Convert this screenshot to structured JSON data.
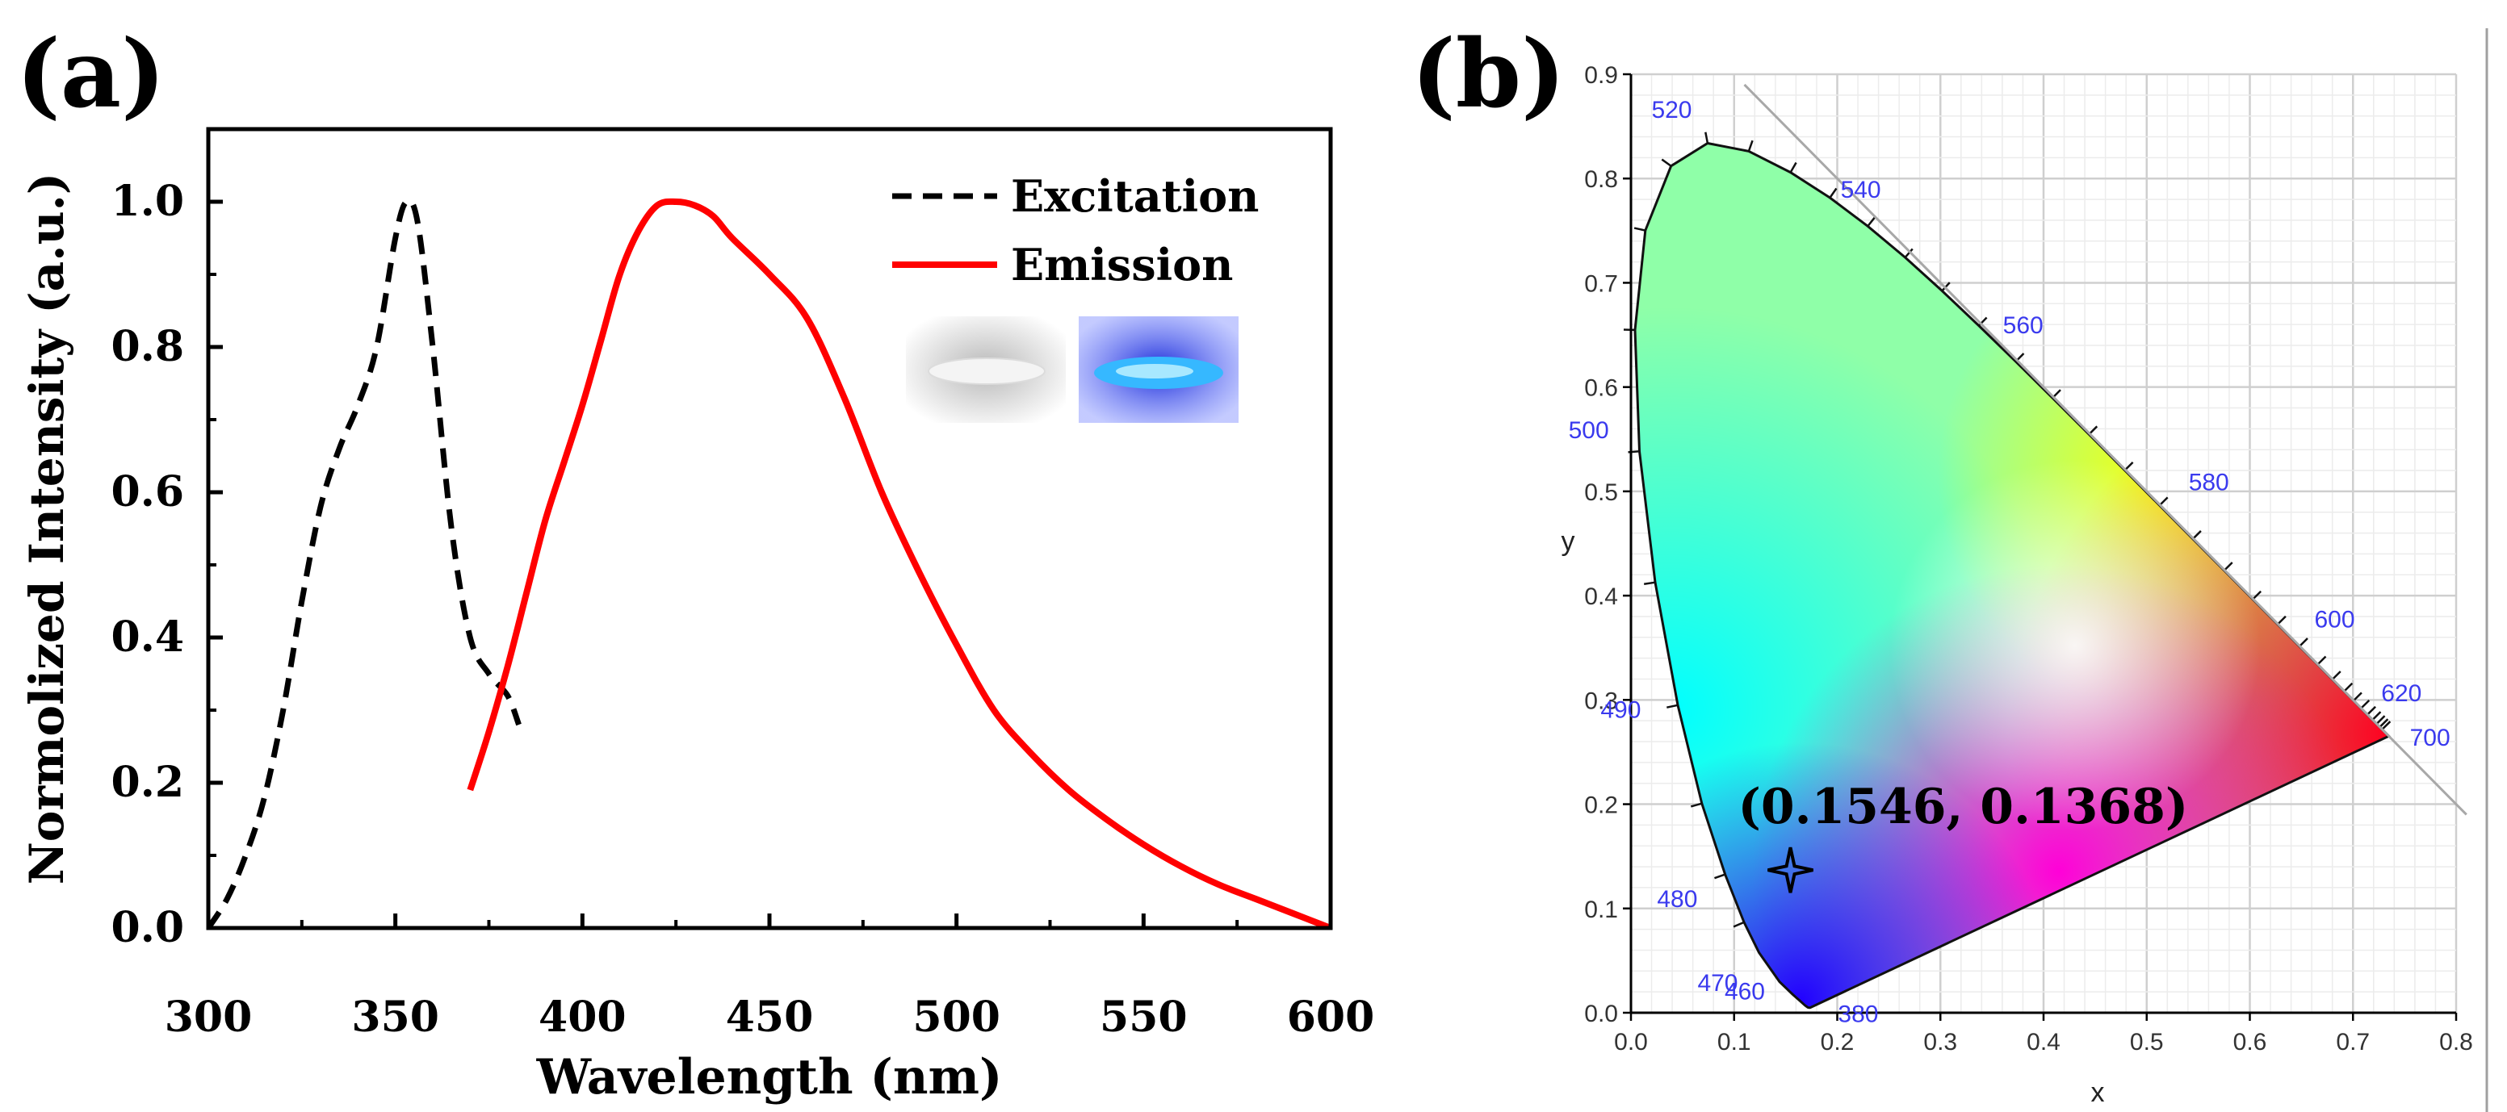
{
  "chart_data": [
    {
      "type": "line",
      "panel_label": "(a)",
      "xlabel": "Wavelength (nm)",
      "ylabel": "Normolized Intensity (a.u.)",
      "xlim": [
        300,
        600
      ],
      "ylim": [
        0,
        1.1
      ],
      "xticks": [
        "300",
        "350",
        "400",
        "450",
        "500",
        "550",
        "600"
      ],
      "yticks": [
        "0.0",
        "0.2",
        "0.4",
        "0.6",
        "0.8",
        "1.0"
      ],
      "legend_position": "top-right",
      "series": [
        {
          "name": "Excitation",
          "style": "dashed",
          "color": "#000000",
          "x": [
            300,
            305,
            310,
            315,
            320,
            325,
            330,
            335,
            340,
            345,
            350,
            353,
            356,
            360,
            365,
            370,
            375,
            380,
            383
          ],
          "y": [
            0.0,
            0.04,
            0.1,
            0.18,
            0.3,
            0.45,
            0.58,
            0.66,
            0.72,
            0.8,
            0.95,
            1.0,
            0.97,
            0.8,
            0.55,
            0.4,
            0.35,
            0.32,
            0.28
          ]
        },
        {
          "name": "Emission",
          "style": "solid",
          "color": "#ff0000",
          "x": [
            370,
            375,
            380,
            385,
            390,
            395,
            400,
            405,
            410,
            415,
            420,
            425,
            430,
            435,
            440,
            450,
            460,
            470,
            480,
            490,
            500,
            510,
            520,
            530,
            540,
            550,
            560,
            570,
            580,
            590,
            600
          ],
          "y": [
            0.19,
            0.27,
            0.36,
            0.46,
            0.56,
            0.64,
            0.72,
            0.81,
            0.9,
            0.96,
            0.995,
            1.0,
            0.995,
            0.98,
            0.95,
            0.9,
            0.84,
            0.73,
            0.6,
            0.49,
            0.39,
            0.3,
            0.24,
            0.19,
            0.15,
            0.115,
            0.085,
            0.06,
            0.04,
            0.02,
            0.0
          ]
        }
      ]
    },
    {
      "type": "scatter",
      "panel_label": "(b)",
      "xlabel": "x",
      "ylabel": "y",
      "xlim": [
        0.0,
        0.8
      ],
      "ylim": [
        0.0,
        0.9
      ],
      "xticks": [
        "0.0",
        "0.1",
        "0.2",
        "0.3",
        "0.4",
        "0.5",
        "0.6",
        "0.7",
        "0.8"
      ],
      "yticks": [
        "0.0",
        "0.1",
        "0.2",
        "0.3",
        "0.4",
        "0.5",
        "0.6",
        "0.7",
        "0.8",
        "0.9"
      ],
      "grid": true,
      "wavelength_labels": [
        {
          "label": "380",
          "x": 0.1741,
          "y": 0.005
        },
        {
          "label": "460",
          "x": 0.144,
          "y": 0.0297
        },
        {
          "label": "470",
          "x": 0.1241,
          "y": 0.0578
        },
        {
          "label": "480",
          "x": 0.0913,
          "y": 0.1327
        },
        {
          "label": "490",
          "x": 0.0454,
          "y": 0.295
        },
        {
          "label": "500",
          "x": 0.0082,
          "y": 0.5384
        },
        {
          "label": "520",
          "x": 0.0743,
          "y": 0.8338
        },
        {
          "label": "540",
          "x": 0.2296,
          "y": 0.7543
        },
        {
          "label": "560",
          "x": 0.3731,
          "y": 0.6245
        },
        {
          "label": "580",
          "x": 0.5125,
          "y": 0.4866
        },
        {
          "label": "600",
          "x": 0.627,
          "y": 0.3725
        },
        {
          "label": "620",
          "x": 0.6915,
          "y": 0.3083
        },
        {
          "label": "700",
          "x": 0.7347,
          "y": 0.2653
        }
      ],
      "point": {
        "x": 0.1546,
        "y": 0.1368,
        "label": "(0.1546, 0.1368)"
      }
    }
  ]
}
